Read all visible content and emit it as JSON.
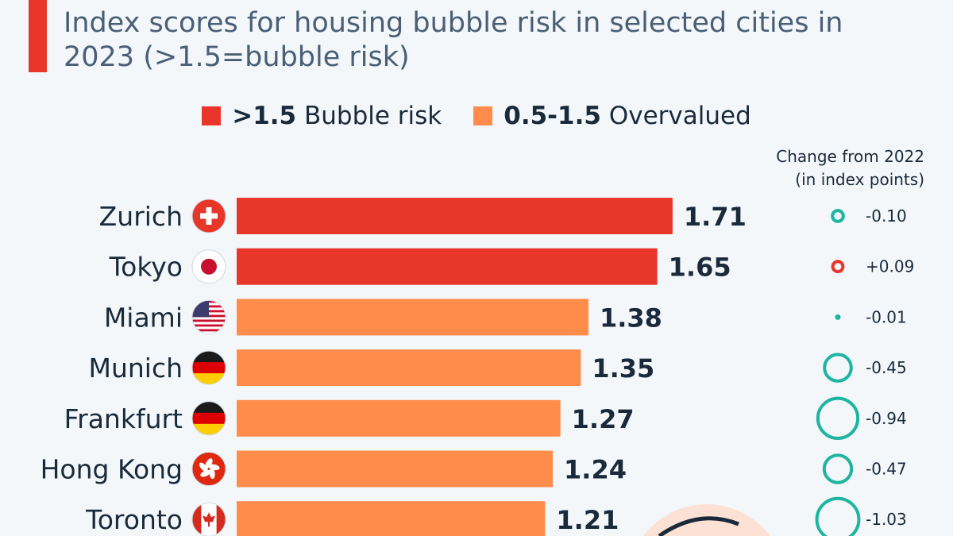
{
  "title": "Index scores for housing bubble risk in selected cities in 2023 (>1.5=bubble risk)",
  "legend": [
    {
      "bold": ">1.5",
      "label": "Bubble risk",
      "color": "#e8372a"
    },
    {
      "bold": "0.5-1.5",
      "label": "Overvalued",
      "color": "#ff8c4b"
    }
  ],
  "change_header": [
    "Change from 2022",
    "(in index points)"
  ],
  "colors": {
    "bubble": "#e8372a",
    "overvalued": "#ff8c4b",
    "decrease": "#1db5a0",
    "increase": "#e8372a"
  },
  "chart_data": {
    "type": "bar",
    "orientation": "horizontal",
    "title": "Index scores for housing bubble risk in selected cities in 2023 (>1.5=bubble risk)",
    "categories": [
      "Zurich",
      "Tokyo",
      "Miami",
      "Munich",
      "Frankfurt",
      "Hong Kong",
      "Toronto"
    ],
    "flags": [
      "switzerland-flag",
      "japan-flag",
      "usa-flag",
      "germany-flag",
      "germany-flag",
      "hong-kong-flag",
      "canada-flag"
    ],
    "values": [
      1.71,
      1.65,
      1.38,
      1.35,
      1.27,
      1.24,
      1.21
    ],
    "value_labels": [
      "1.71",
      "1.65",
      "1.38",
      "1.35",
      "1.27",
      "1.24",
      "1.21"
    ],
    "change": [
      -0.1,
      0.09,
      -0.01,
      -0.45,
      -0.94,
      -0.47,
      -1.03
    ],
    "change_labels": [
      "-0.10",
      "+0.09",
      "-0.01",
      "-0.45",
      "-0.94",
      "-0.47",
      "-1.03"
    ],
    "bubble_threshold": 1.5,
    "xlim": [
      0,
      1.71
    ]
  }
}
